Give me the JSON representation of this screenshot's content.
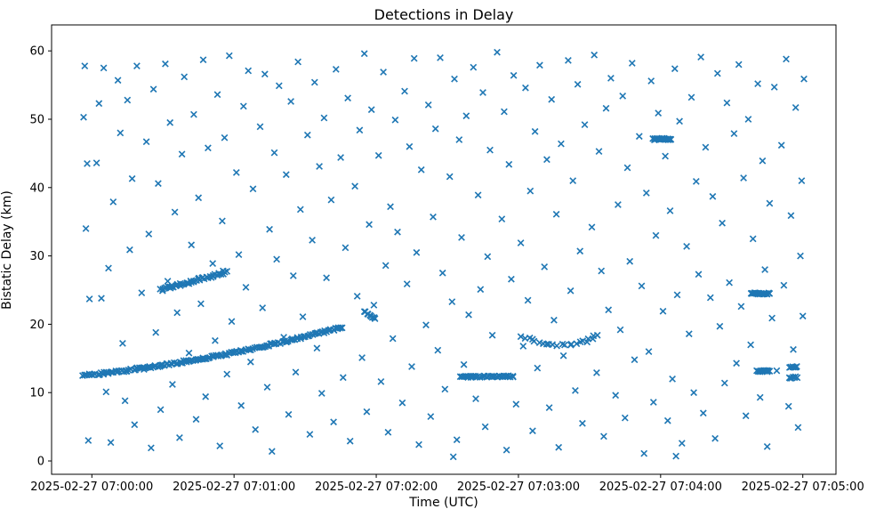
{
  "figure": {
    "title": "Detections in Delay",
    "xlabel": "Time (UTC)",
    "ylabel": "Bistatic Delay (km)",
    "background_color": "#ffffff",
    "marker_color": "#1f77b4",
    "spine_color": "#000000"
  },
  "chart_data": {
    "type": "scatter",
    "title": "Detections in Delay",
    "xlabel": "Time (UTC)",
    "ylabel": "Bistatic Delay (km)",
    "marker": "x",
    "marker_color": "#1f77b4",
    "grid": false,
    "legend": false,
    "time_origin": "2025-02-27 07:00:00",
    "x_tick_labels": [
      "2025-02-27 07:00:00",
      "2025-02-27 07:01:00",
      "2025-02-27 07:02:00",
      "2025-02-27 07:03:00",
      "2025-02-27 07:04:00",
      "2025-02-27 07:05:00"
    ],
    "x_tick_seconds": [
      0,
      60,
      120,
      180,
      240,
      300
    ],
    "y_tick_labels": [
      "0",
      "10",
      "20",
      "30",
      "40",
      "50",
      "60"
    ],
    "y_tick_values": [
      0,
      10,
      20,
      30,
      40,
      50,
      60
    ],
    "xlim_seconds": [
      -17,
      314
    ],
    "ylim_km": [
      -1.95,
      63.8
    ],
    "tracks": [
      {
        "name": "ascending-track-main",
        "kind": "line",
        "t0": -4,
        "t1": 106,
        "d0": 12.5,
        "d1": 19.6,
        "curve": 0.45,
        "n": 175,
        "jt": 0.5,
        "jd": 0.16
      },
      {
        "name": "ascending-track-2",
        "kind": "line",
        "t0": 29,
        "t1": 57,
        "d0": 25.0,
        "d1": 27.7,
        "curve": 0,
        "n": 46,
        "jt": 0.5,
        "jd": 0.22
      },
      {
        "name": "mini-cluster-21km",
        "kind": "line",
        "t0": 115,
        "t1": 119.5,
        "d0": 21.8,
        "d1": 20.9,
        "curve": 0,
        "n": 9,
        "jt": 0.3,
        "jd": 0.15
      },
      {
        "name": "dip-track-17km",
        "kind": "dip",
        "t0": 181,
        "t1": 214,
        "dmin": 16.9,
        "coef": 0.0055,
        "n": 22,
        "jt": 0.8,
        "jd": 0.22
      },
      {
        "name": "flat-cluster-12km",
        "kind": "line",
        "t0": 155.5,
        "t1": 178,
        "d0": 12.3,
        "d1": 12.4,
        "curve": 0,
        "n": 40,
        "jt": 0.4,
        "jd": 0.1
      },
      {
        "name": "flat-cluster-47km",
        "kind": "line",
        "t0": 237,
        "t1": 244.5,
        "d0": 47.1,
        "d1": 47.1,
        "curve": 0,
        "n": 28,
        "jt": 0.3,
        "jd": 0.12
      },
      {
        "name": "flat-cluster-24km",
        "kind": "line",
        "t0": 278,
        "t1": 286,
        "d0": 24.5,
        "d1": 24.5,
        "curve": 0,
        "n": 26,
        "jt": 0.3,
        "jd": 0.12
      },
      {
        "name": "flat-cluster-13km",
        "kind": "line",
        "t0": 280.5,
        "t1": 286,
        "d0": 13.15,
        "d1": 13.15,
        "curve": 0,
        "n": 14,
        "jt": 0.3,
        "jd": 0.1
      },
      {
        "name": "blob-13-7km",
        "kind": "line",
        "t0": 294.5,
        "t1": 297.5,
        "d0": 13.7,
        "d1": 13.7,
        "curve": 0,
        "n": 7,
        "jt": 0.3,
        "jd": 0.12
      },
      {
        "name": "blob-12-2km",
        "kind": "line",
        "t0": 294.5,
        "t1": 297.5,
        "d0": 12.2,
        "d1": 12.2,
        "curve": 0,
        "n": 7,
        "jt": 0.3,
        "jd": 0.12
      }
    ],
    "noise_points": [
      [
        -3,
        57.8
      ],
      [
        -2,
        43.5
      ],
      [
        -1,
        23.7
      ],
      [
        -3.5,
        50.3
      ],
      [
        -1.5,
        3.0
      ],
      [
        -2.5,
        34.0
      ],
      [
        2,
        43.6
      ],
      [
        3,
        52.3
      ],
      [
        4,
        23.8
      ],
      [
        5,
        57.5
      ],
      [
        6,
        10.1
      ],
      [
        7,
        28.2
      ],
      [
        8,
        2.7
      ],
      [
        9,
        37.9
      ],
      [
        11,
        55.7
      ],
      [
        12,
        48.0
      ],
      [
        13,
        17.2
      ],
      [
        14,
        8.8
      ],
      [
        15,
        52.8
      ],
      [
        16,
        30.9
      ],
      [
        17,
        41.3
      ],
      [
        18,
        5.3
      ],
      [
        19,
        57.8
      ],
      [
        21,
        24.6
      ],
      [
        22,
        13.4
      ],
      [
        23,
        46.7
      ],
      [
        24,
        33.2
      ],
      [
        25,
        1.9
      ],
      [
        26,
        54.4
      ],
      [
        27,
        18.8
      ],
      [
        28,
        40.6
      ],
      [
        29,
        7.5
      ],
      [
        31,
        58.1
      ],
      [
        32,
        26.3
      ],
      [
        33,
        49.5
      ],
      [
        34,
        11.2
      ],
      [
        35,
        36.4
      ],
      [
        36,
        21.7
      ],
      [
        37,
        3.4
      ],
      [
        38,
        44.9
      ],
      [
        39,
        56.2
      ],
      [
        41,
        15.8
      ],
      [
        42,
        31.6
      ],
      [
        43,
        50.7
      ],
      [
        44,
        6.1
      ],
      [
        45,
        38.5
      ],
      [
        46,
        23.0
      ],
      [
        47,
        58.7
      ],
      [
        48,
        9.4
      ],
      [
        49,
        45.8
      ],
      [
        51,
        28.9
      ],
      [
        52,
        17.6
      ],
      [
        53,
        53.6
      ],
      [
        54,
        2.2
      ],
      [
        55,
        35.1
      ],
      [
        56,
        47.3
      ],
      [
        57,
        12.7
      ],
      [
        58,
        59.3
      ],
      [
        59,
        20.4
      ],
      [
        61,
        42.2
      ],
      [
        62,
        30.2
      ],
      [
        63,
        8.1
      ],
      [
        64,
        51.9
      ],
      [
        65,
        25.4
      ],
      [
        66,
        57.1
      ],
      [
        67,
        14.5
      ],
      [
        68,
        39.8
      ],
      [
        69,
        4.6
      ],
      [
        71,
        48.9
      ],
      [
        72,
        22.4
      ],
      [
        73,
        56.6
      ],
      [
        74,
        10.8
      ],
      [
        75,
        33.9
      ],
      [
        76,
        1.4
      ],
      [
        77,
        45.1
      ],
      [
        78,
        29.5
      ],
      [
        79,
        54.9
      ],
      [
        81,
        18.1
      ],
      [
        82,
        41.9
      ],
      [
        83,
        6.8
      ],
      [
        84,
        52.6
      ],
      [
        85,
        27.1
      ],
      [
        86,
        13.0
      ],
      [
        87,
        58.4
      ],
      [
        88,
        36.8
      ],
      [
        89,
        21.1
      ],
      [
        91,
        47.7
      ],
      [
        92,
        3.9
      ],
      [
        93,
        32.3
      ],
      [
        94,
        55.4
      ],
      [
        95,
        16.5
      ],
      [
        96,
        43.1
      ],
      [
        97,
        9.9
      ],
      [
        98,
        50.2
      ],
      [
        99,
        26.8
      ],
      [
        101,
        38.2
      ],
      [
        102,
        5.7
      ],
      [
        103,
        57.3
      ],
      [
        104,
        19.5
      ],
      [
        105,
        44.4
      ],
      [
        106,
        12.2
      ],
      [
        107,
        31.2
      ],
      [
        108,
        53.1
      ],
      [
        109,
        2.9
      ],
      [
        111,
        40.2
      ],
      [
        112,
        24.1
      ],
      [
        113,
        48.4
      ],
      [
        114,
        15.1
      ],
      [
        115,
        59.6
      ],
      [
        116,
        7.2
      ],
      [
        117,
        34.6
      ],
      [
        118,
        51.4
      ],
      [
        119,
        22.8
      ],
      [
        121,
        44.7
      ],
      [
        122,
        11.6
      ],
      [
        123,
        56.9
      ],
      [
        124,
        28.6
      ],
      [
        125,
        4.2
      ],
      [
        126,
        37.2
      ],
      [
        127,
        17.9
      ],
      [
        128,
        49.9
      ],
      [
        129,
        33.5
      ],
      [
        131,
        8.5
      ],
      [
        132,
        54.1
      ],
      [
        133,
        25.9
      ],
      [
        134,
        46.0
      ],
      [
        135,
        13.8
      ],
      [
        136,
        58.9
      ],
      [
        137,
        30.5
      ],
      [
        138,
        2.4
      ],
      [
        139,
        42.6
      ],
      [
        141,
        19.9
      ],
      [
        142,
        52.1
      ],
      [
        143,
        6.5
      ],
      [
        144,
        35.7
      ],
      [
        145,
        48.6
      ],
      [
        146,
        16.2
      ],
      [
        147,
        59.0
      ],
      [
        148,
        27.5
      ],
      [
        149,
        10.5
      ],
      [
        151,
        41.6
      ],
      [
        152,
        23.3
      ],
      [
        152.5,
        0.6
      ],
      [
        153,
        55.9
      ],
      [
        154,
        3.1
      ],
      [
        155,
        47.0
      ],
      [
        156,
        32.7
      ],
      [
        157,
        14.1
      ],
      [
        158,
        50.5
      ],
      [
        159,
        21.4
      ],
      [
        161,
        57.6
      ],
      [
        162,
        9.1
      ],
      [
        163,
        38.9
      ],
      [
        164,
        25.1
      ],
      [
        165,
        53.9
      ],
      [
        166,
        5.0
      ],
      [
        167,
        29.9
      ],
      [
        168,
        45.5
      ],
      [
        169,
        18.4
      ],
      [
        171,
        59.8
      ],
      [
        172,
        12.4
      ],
      [
        173,
        35.4
      ],
      [
        174,
        51.1
      ],
      [
        175,
        1.6
      ],
      [
        176,
        43.4
      ],
      [
        177,
        26.6
      ],
      [
        178,
        56.4
      ],
      [
        179,
        8.3
      ],
      [
        181,
        31.9
      ],
      [
        182,
        16.8
      ],
      [
        183,
        54.6
      ],
      [
        184,
        23.5
      ],
      [
        185,
        39.5
      ],
      [
        186,
        4.4
      ],
      [
        187,
        48.2
      ],
      [
        188,
        13.6
      ],
      [
        189,
        57.9
      ],
      [
        191,
        28.4
      ],
      [
        192,
        44.1
      ],
      [
        193,
        7.8
      ],
      [
        194,
        52.9
      ],
      [
        195,
        20.6
      ],
      [
        196,
        36.1
      ],
      [
        197,
        2.0
      ],
      [
        198,
        46.4
      ],
      [
        199,
        15.4
      ],
      [
        201,
        58.6
      ],
      [
        202,
        24.9
      ],
      [
        203,
        41.0
      ],
      [
        204,
        10.3
      ],
      [
        205,
        55.1
      ],
      [
        206,
        30.7
      ],
      [
        207,
        5.5
      ],
      [
        208,
        49.2
      ],
      [
        209,
        17.4
      ],
      [
        211,
        34.2
      ],
      [
        212,
        59.4
      ],
      [
        213,
        12.9
      ],
      [
        214,
        45.3
      ],
      [
        215,
        27.8
      ],
      [
        216,
        3.6
      ],
      [
        217,
        51.6
      ],
      [
        218,
        22.1
      ],
      [
        219,
        56.0
      ],
      [
        221,
        9.6
      ],
      [
        222,
        37.5
      ],
      [
        223,
        19.2
      ],
      [
        224,
        53.4
      ],
      [
        225,
        6.3
      ],
      [
        226,
        42.9
      ],
      [
        227,
        29.2
      ],
      [
        228,
        58.2
      ],
      [
        229,
        14.8
      ],
      [
        231,
        47.5
      ],
      [
        232,
        25.6
      ],
      [
        233,
        1.1
      ],
      [
        234,
        39.2
      ],
      [
        235,
        16.0
      ],
      [
        236,
        55.6
      ],
      [
        237,
        8.6
      ],
      [
        238,
        33.0
      ],
      [
        239,
        50.9
      ],
      [
        241,
        21.9
      ],
      [
        242,
        44.6
      ],
      [
        243,
        5.9
      ],
      [
        244,
        36.6
      ],
      [
        245,
        12.0
      ],
      [
        246,
        57.4
      ],
      [
        246.5,
        0.7
      ],
      [
        247,
        24.3
      ],
      [
        248,
        49.7
      ],
      [
        249,
        2.6
      ],
      [
        251,
        31.4
      ],
      [
        252,
        18.6
      ],
      [
        253,
        53.2
      ],
      [
        254,
        10.0
      ],
      [
        255,
        40.9
      ],
      [
        256,
        27.3
      ],
      [
        257,
        59.1
      ],
      [
        258,
        7.0
      ],
      [
        259,
        45.9
      ],
      [
        261,
        23.9
      ],
      [
        262,
        38.7
      ],
      [
        263,
        3.3
      ],
      [
        264,
        56.7
      ],
      [
        265,
        19.7
      ],
      [
        266,
        34.8
      ],
      [
        267,
        11.4
      ],
      [
        268,
        52.4
      ],
      [
        269,
        26.1
      ],
      [
        271,
        47.9
      ],
      [
        272,
        14.3
      ],
      [
        273,
        58.0
      ],
      [
        274,
        22.6
      ],
      [
        275,
        41.4
      ],
      [
        276,
        6.6
      ],
      [
        277,
        50.0
      ],
      [
        278,
        17.0
      ],
      [
        279,
        32.5
      ],
      [
        281,
        55.2
      ],
      [
        282,
        9.3
      ],
      [
        283,
        43.9
      ],
      [
        284,
        28.0
      ],
      [
        285,
        2.1
      ],
      [
        286,
        37.7
      ],
      [
        287,
        20.9
      ],
      [
        288,
        54.7
      ],
      [
        289,
        13.2
      ],
      [
        291,
        46.2
      ],
      [
        292,
        25.7
      ],
      [
        293,
        58.8
      ],
      [
        294,
        8.0
      ],
      [
        295,
        35.9
      ],
      [
        296,
        16.3
      ],
      [
        297,
        51.7
      ],
      [
        298,
        4.9
      ],
      [
        299,
        30.0
      ],
      [
        299.5,
        41.0
      ],
      [
        300,
        21.2
      ],
      [
        300.5,
        55.9
      ]
    ]
  }
}
